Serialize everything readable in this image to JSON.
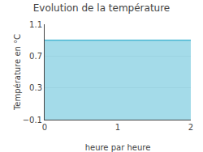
{
  "chart_data": {
    "type": "area",
    "title": "Evolution de la température",
    "x": [
      0,
      2
    ],
    "values": [
      0.9,
      0.9
    ],
    "color": "#4ab8d4",
    "xlabel": "heure par heure",
    "ylabel": "Température en °C",
    "xlim": [
      0,
      2
    ],
    "ylim": [
      -0.1,
      1.1
    ],
    "xticks": [
      0,
      1,
      2
    ],
    "yticks": [
      -0.1,
      0.3,
      0.7,
      1.1
    ],
    "grid": true
  }
}
